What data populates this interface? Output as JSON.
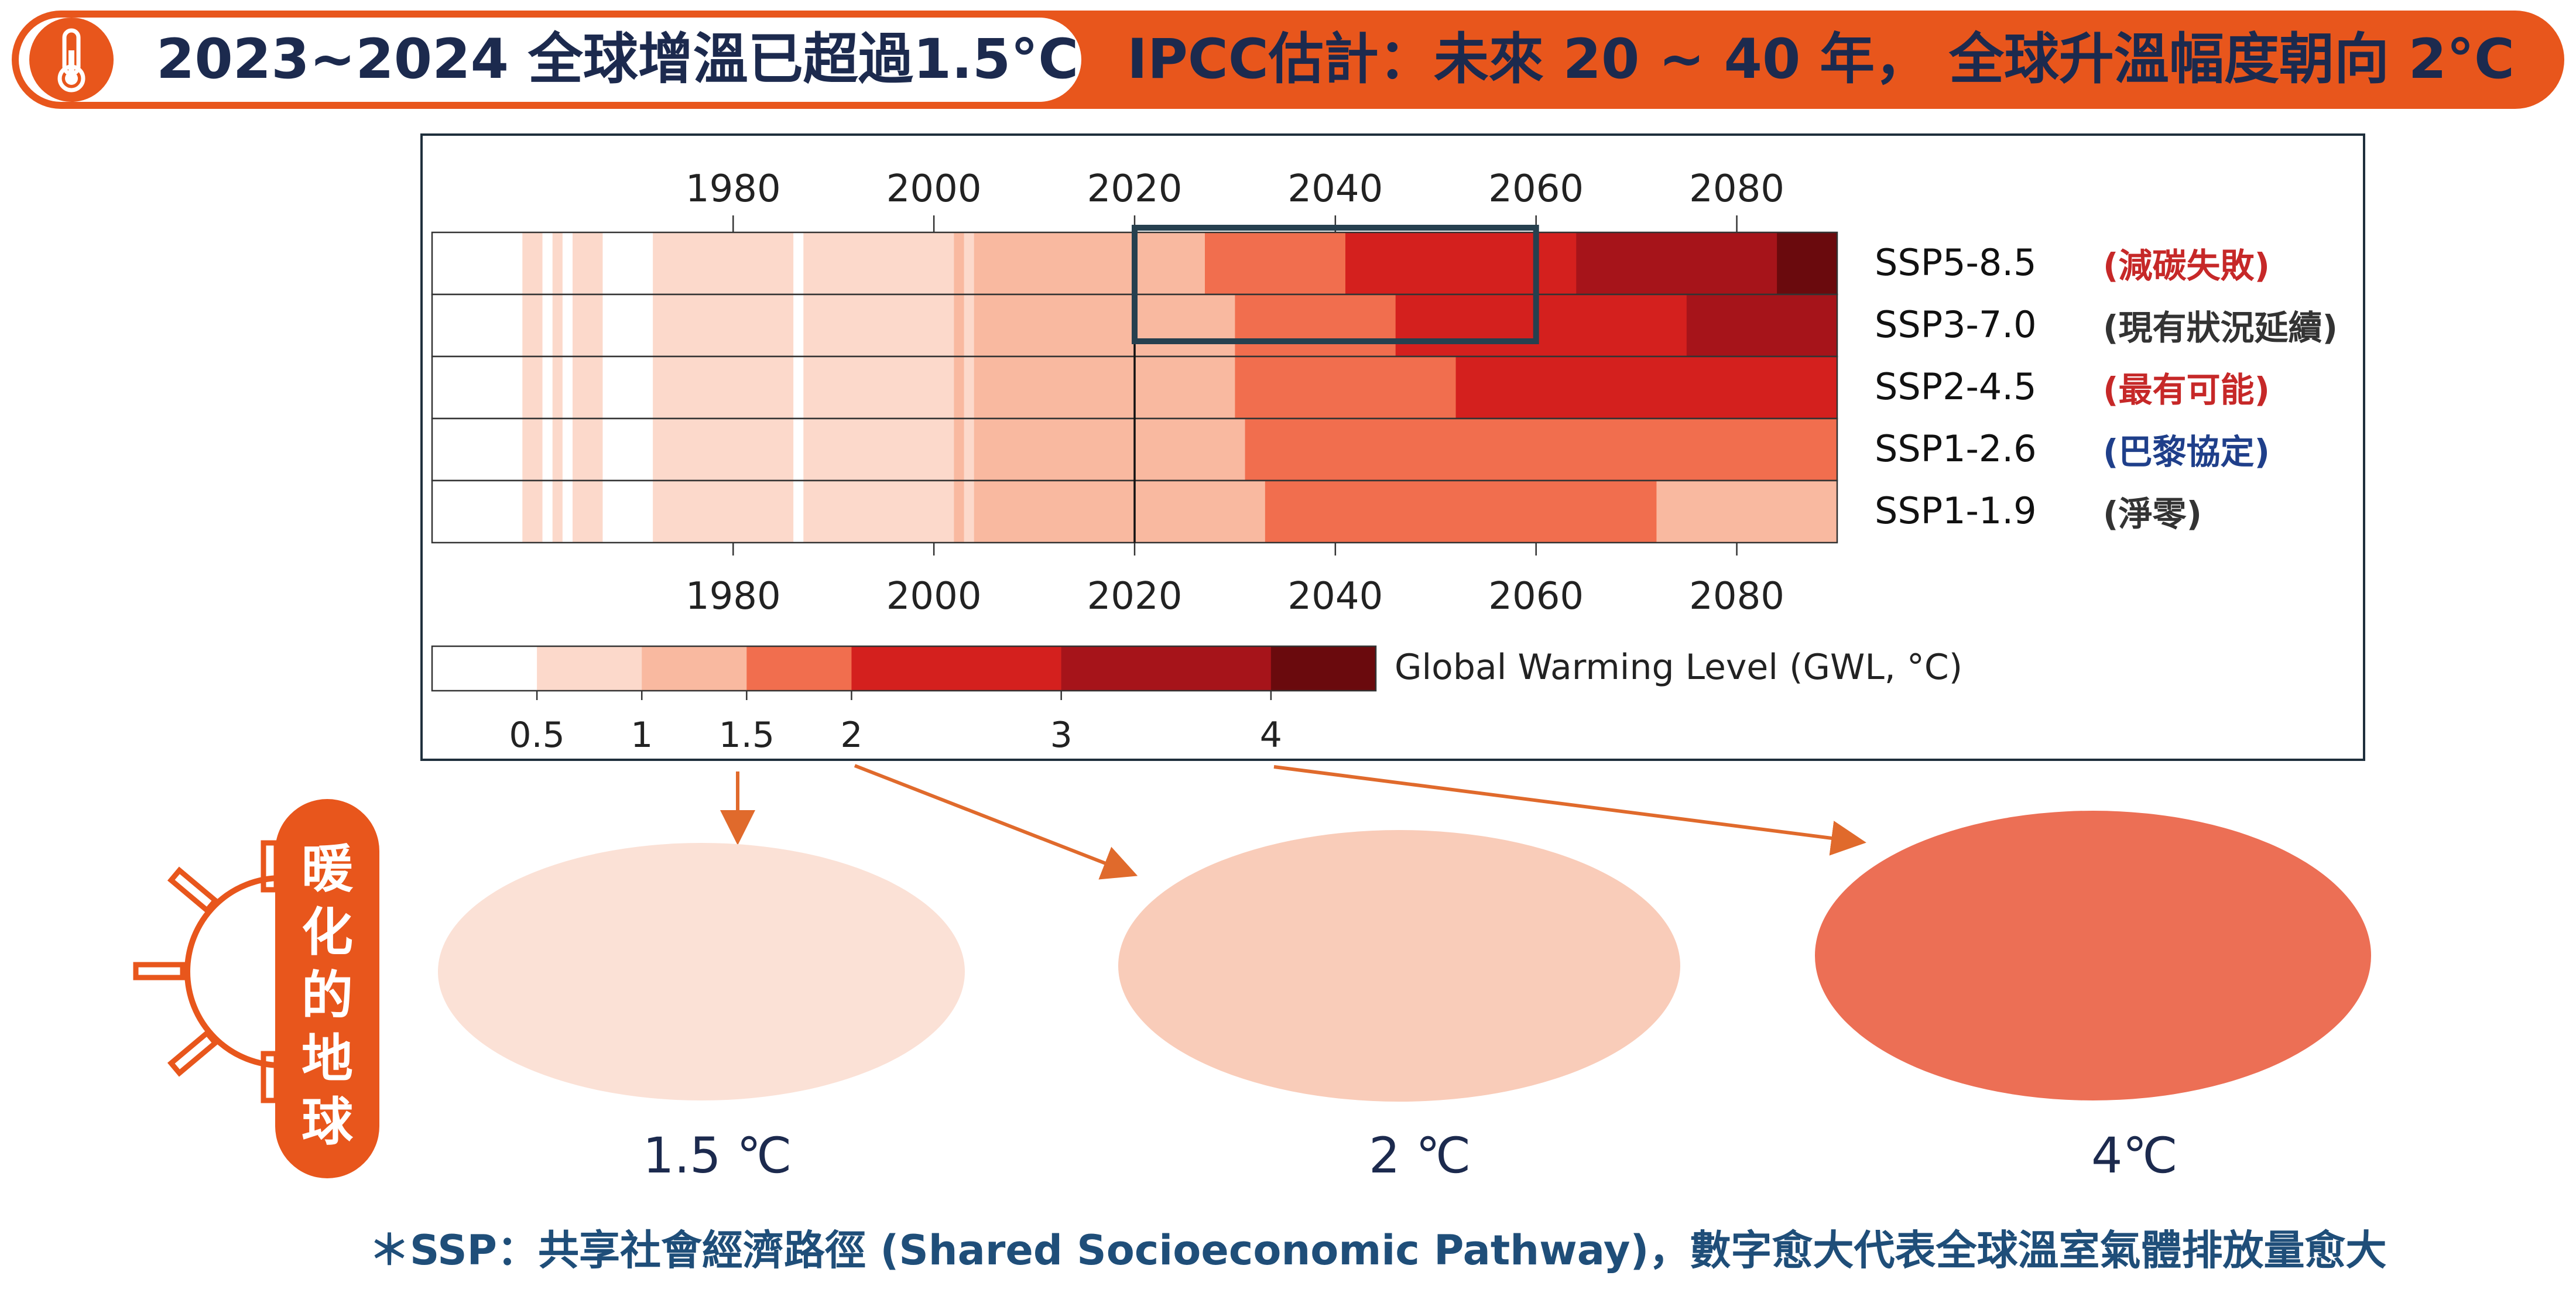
{
  "banner": {
    "left_text": "2023~2024 全球增溫已超過1.5°C",
    "right_text": "IPCC估計：未來 20 ~ 40 年， 全球升溫幅度朝向 2°C"
  },
  "chart_data": {
    "type": "heatmap",
    "x_ticks": [
      1980,
      2000,
      2020,
      2040,
      2060,
      2080
    ],
    "x_range": [
      1950,
      2090
    ],
    "now_year": 2020,
    "highlight": {
      "x_start": 2020,
      "x_end": 2060,
      "rows": [
        "SSP5-8.5",
        "SSP3-7.0"
      ]
    },
    "colorbar": {
      "label": "Global Warming Level (GWL, °C)",
      "ticks": [
        "0.5",
        "1",
        "1.5",
        "2",
        "3",
        "4"
      ],
      "bins": [
        {
          "from": 0.0,
          "to": 0.5,
          "color": "#ffffff"
        },
        {
          "from": 0.5,
          "to": 1.0,
          "color": "#fcd9cb"
        },
        {
          "from": 1.0,
          "to": 1.5,
          "color": "#f9b9a0"
        },
        {
          "from": 1.5,
          "to": 2.0,
          "color": "#f16e4e"
        },
        {
          "from": 2.0,
          "to": 3.0,
          "color": "#d4201e"
        },
        {
          "from": 3.0,
          "to": 4.0,
          "color": "#a6141a"
        },
        {
          "from": 4.0,
          "to": 5.0,
          "color": "#6a0a0d"
        }
      ]
    },
    "historical": [
      {
        "from": 1950,
        "to": 1959,
        "gwl": 0.25
      },
      {
        "from": 1959,
        "to": 1961,
        "gwl": 0.75
      },
      {
        "from": 1961,
        "to": 1962,
        "gwl": 0.25
      },
      {
        "from": 1962,
        "to": 1963,
        "gwl": 0.75
      },
      {
        "from": 1963,
        "to": 1964,
        "gwl": 0.25
      },
      {
        "from": 1964,
        "to": 1967,
        "gwl": 0.75
      },
      {
        "from": 1967,
        "to": 1972,
        "gwl": 0.25
      },
      {
        "from": 1972,
        "to": 1986,
        "gwl": 0.75
      },
      {
        "from": 1986,
        "to": 1987,
        "gwl": 0.25
      },
      {
        "from": 1987,
        "to": 2002,
        "gwl": 0.75
      },
      {
        "from": 2002,
        "to": 2003,
        "gwl": 1.25
      },
      {
        "from": 2003,
        "to": 2004,
        "gwl": 0.75
      },
      {
        "from": 2004,
        "to": 2020,
        "gwl": 1.25
      }
    ],
    "scenarios": [
      {
        "name": "SSP5-8.5",
        "note": "(減碳失敗)",
        "note_color": "#c62828",
        "segments": [
          {
            "from": 2020,
            "to": 2027,
            "gwl": 1.25
          },
          {
            "from": 2027,
            "to": 2041,
            "gwl": 1.75
          },
          {
            "from": 2041,
            "to": 2064,
            "gwl": 2.5
          },
          {
            "from": 2064,
            "to": 2084,
            "gwl": 3.5
          },
          {
            "from": 2084,
            "to": 2090,
            "gwl": 4.5
          }
        ]
      },
      {
        "name": "SSP3-7.0",
        "note": "(現有狀況延續)",
        "note_color": "#333333",
        "segments": [
          {
            "from": 2020,
            "to": 2030,
            "gwl": 1.25
          },
          {
            "from": 2030,
            "to": 2046,
            "gwl": 1.75
          },
          {
            "from": 2046,
            "to": 2075,
            "gwl": 2.5
          },
          {
            "from": 2075,
            "to": 2090,
            "gwl": 3.5
          }
        ]
      },
      {
        "name": "SSP2-4.5",
        "note": "(最有可能)",
        "note_color": "#c62828",
        "segments": [
          {
            "from": 2020,
            "to": 2030,
            "gwl": 1.25
          },
          {
            "from": 2030,
            "to": 2052,
            "gwl": 1.75
          },
          {
            "from": 2052,
            "to": 2090,
            "gwl": 2.5
          }
        ]
      },
      {
        "name": "SSP1-2.6",
        "note": "(巴黎協定)",
        "note_color": "#1f3f8a",
        "segments": [
          {
            "from": 2020,
            "to": 2031,
            "gwl": 1.25
          },
          {
            "from": 2031,
            "to": 2090,
            "gwl": 1.75
          }
        ]
      },
      {
        "name": "SSP1-1.9",
        "note": "(淨零)",
        "note_color": "#333333",
        "segments": [
          {
            "from": 2020,
            "to": 2033,
            "gwl": 1.25
          },
          {
            "from": 2033,
            "to": 2072,
            "gwl": 1.75
          },
          {
            "from": 2072,
            "to": 2090,
            "gwl": 1.25
          }
        ]
      }
    ]
  },
  "side_label": [
    "暖",
    "化",
    "的",
    "地",
    "球"
  ],
  "maps": [
    {
      "label": "1.5 ℃",
      "gwl": 1.5,
      "ocean": "#fbe1d6",
      "land": "#f7c3ad",
      "hot": "#f3a488"
    },
    {
      "label": "2 ℃",
      "gwl": 2,
      "ocean": "#f9ccb9",
      "land": "#f4a68a",
      "hot": "#ef8a6a"
    },
    {
      "label": "4℃",
      "gwl": 4,
      "ocean": "#ec6f55",
      "land": "#dc3a2e",
      "hot": "#b5191a"
    }
  ],
  "footnote": "＊SSP：共享社會經濟路徑 (Shared Socioeconomic Pathway)，數字愈大代表全球溫室氣體排放量愈大",
  "colors": {
    "accent": "#e8561c",
    "navy": "#1c2a4e",
    "highlight_box": "#26404f"
  }
}
